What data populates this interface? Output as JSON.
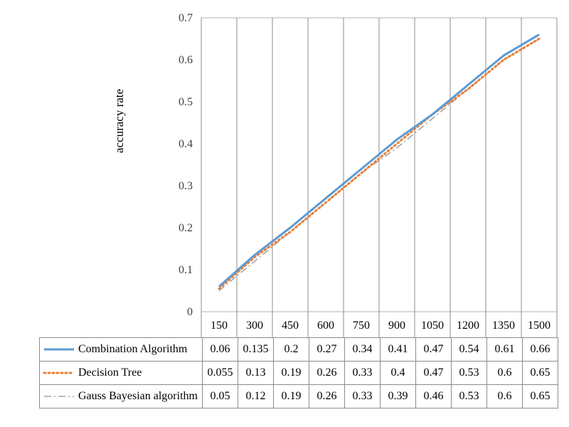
{
  "chart_data": {
    "type": "line",
    "ylabel": "accuracy rate",
    "xlabel": "",
    "ylim": [
      0,
      0.7
    ],
    "yticks": [
      "0",
      "0.1",
      "0.2",
      "0.3",
      "0.4",
      "0.5",
      "0.6",
      "0.7"
    ],
    "categories": [
      "150",
      "300",
      "450",
      "600",
      "750",
      "900",
      "1050",
      "1200",
      "1350",
      "1500"
    ],
    "grid": true,
    "series": [
      {
        "name": "Combination Algorithm",
        "style": "solid",
        "color": "#5b9bd5",
        "values": [
          0.06,
          0.135,
          0.2,
          0.27,
          0.34,
          0.41,
          0.47,
          0.54,
          0.61,
          0.66
        ],
        "labels": [
          "0.06",
          "0.135",
          "0.2",
          "0.27",
          "0.34",
          "0.41",
          "0.47",
          "0.54",
          "0.61",
          "0.66"
        ]
      },
      {
        "name": "Decision Tree",
        "style": "dotted",
        "color": "#ed7d31",
        "values": [
          0.055,
          0.13,
          0.19,
          0.26,
          0.33,
          0.4,
          0.47,
          0.53,
          0.6,
          0.65
        ],
        "labels": [
          "0.055",
          "0.13",
          "0.19",
          "0.26",
          "0.33",
          "0.4",
          "0.47",
          "0.53",
          "0.6",
          "0.65"
        ]
      },
      {
        "name": "Gauss Bayesian algorithm",
        "style": "dashdot",
        "color": "#a5a5a5",
        "values": [
          0.05,
          0.12,
          0.19,
          0.26,
          0.33,
          0.39,
          0.46,
          0.53,
          0.6,
          0.65
        ],
        "labels": [
          "0.05",
          "0.12",
          "0.19",
          "0.26",
          "0.33",
          "0.39",
          "0.46",
          "0.53",
          "0.6",
          "0.65"
        ]
      }
    ]
  }
}
